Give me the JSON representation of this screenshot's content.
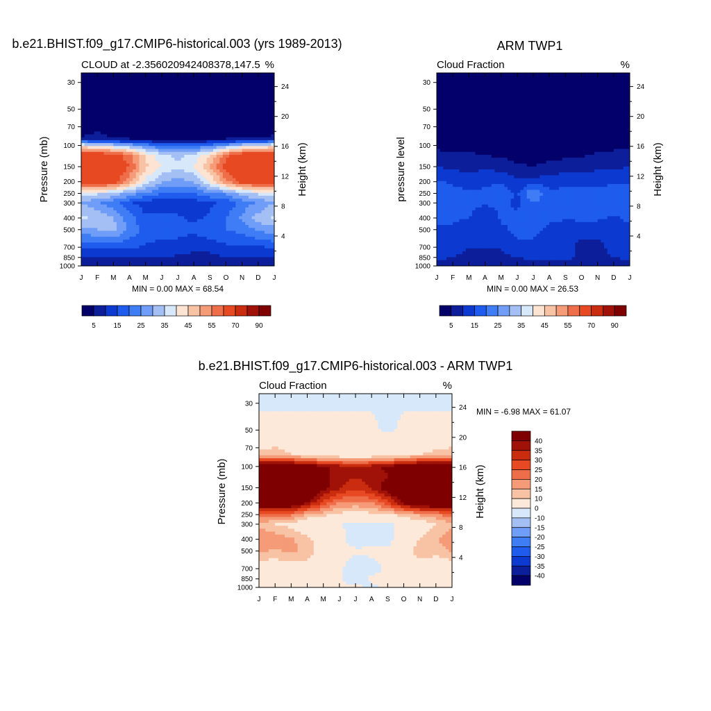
{
  "palettes": {
    "abs": [
      "#03006a",
      "#0d1e9a",
      "#0c3ad0",
      "#1f5cee",
      "#3f7df5",
      "#6f9df7",
      "#a3bff4",
      "#d8e8fb",
      "#fde3d2",
      "#f8c2a4",
      "#f59b78",
      "#ef6e4a",
      "#e74a23",
      "#c92c0e",
      "#a01208",
      "#7e0000"
    ],
    "diff": [
      "#03006a",
      "#0d1e9a",
      "#0c3ad0",
      "#1f5cee",
      "#3f7df5",
      "#6f9df7",
      "#a3bff4",
      "#d8e8fb",
      "#fde9da",
      "#f8c2a4",
      "#f59b78",
      "#ef6e4a",
      "#e74a23",
      "#c92c0e",
      "#a01208",
      "#7e0000"
    ]
  },
  "chart_data": [
    {
      "type": "heatmap",
      "title": "b.e21.BHIST.f09_g17.CMIP6-historical.003 (yrs 1989-2013)",
      "left_subtitle": "CLOUD at -2.356020942408378,147.5",
      "right_subtitle": "%",
      "ylabel": "Pressure (mb)",
      "ylabel_right": "Height (km)",
      "x_ticklabels": [
        "J",
        "F",
        "M",
        "A",
        "M",
        "J",
        "J",
        "A",
        "S",
        "O",
        "N",
        "D",
        "J"
      ],
      "y_ticks": [
        30,
        50,
        70,
        100,
        150,
        200,
        250,
        300,
        400,
        500,
        700,
        850,
        1000
      ],
      "y_ticklabels": [
        "30",
        "50",
        "70",
        "100",
        "150",
        "200",
        "250",
        "300",
        "400",
        "500",
        "700",
        "850",
        "1000"
      ],
      "height_ticks": [
        4,
        8,
        12,
        16,
        20,
        24
      ],
      "height_ticklabels": [
        "4",
        "8",
        "12",
        "16",
        "20",
        "24"
      ],
      "ylim": [
        1000,
        25
      ],
      "y_scale": "log",
      "stats": "MIN =   0.00 MAX =  68.54",
      "levels": [
        5,
        10,
        15,
        20,
        25,
        30,
        35,
        40,
        45,
        50,
        55,
        60,
        70,
        80,
        90
      ],
      "colorbar_labels": [
        "5",
        "15",
        "25",
        "35",
        "45",
        "55",
        "70",
        "90"
      ],
      "colorbar_orientation": "horizontal",
      "palette": "abs",
      "pressure_levels": [
        25,
        50,
        80,
        90,
        100,
        120,
        150,
        200,
        250,
        300,
        400,
        500,
        700,
        850,
        1000
      ],
      "month_values": [
        0,
        1,
        2,
        3,
        4,
        5,
        6,
        7,
        8,
        9,
        10,
        11,
        12
      ],
      "z": [
        [
          0,
          0,
          0,
          0,
          0,
          0,
          0,
          0,
          0,
          0,
          0,
          0,
          0
        ],
        [
          0,
          0,
          0,
          0,
          0,
          0,
          0,
          0,
          0,
          0,
          0,
          0,
          0
        ],
        [
          1,
          6,
          1,
          1,
          1,
          1,
          1,
          1,
          1,
          1,
          1,
          1,
          2
        ],
        [
          12,
          10,
          8,
          6,
          5,
          4,
          4,
          4,
          5,
          6,
          8,
          10,
          12
        ],
        [
          40,
          38,
          34,
          30,
          24,
          20,
          20,
          20,
          22,
          28,
          34,
          38,
          40
        ],
        [
          66,
          66,
          64,
          56,
          44,
          36,
          34,
          36,
          44,
          58,
          66,
          66,
          66
        ],
        [
          66,
          68,
          66,
          60,
          46,
          40,
          36,
          40,
          50,
          62,
          68,
          68,
          66
        ],
        [
          64,
          66,
          64,
          52,
          38,
          30,
          28,
          30,
          40,
          54,
          64,
          66,
          64
        ],
        [
          38,
          36,
          34,
          28,
          24,
          20,
          20,
          20,
          24,
          26,
          32,
          36,
          38
        ],
        [
          30,
          26,
          22,
          16,
          12,
          12,
          12,
          12,
          14,
          16,
          22,
          26,
          30
        ],
        [
          36,
          34,
          30,
          22,
          16,
          16,
          16,
          14,
          16,
          20,
          26,
          32,
          36
        ],
        [
          28,
          30,
          32,
          24,
          18,
          16,
          16,
          16,
          18,
          20,
          22,
          26,
          28
        ],
        [
          16,
          16,
          16,
          16,
          14,
          14,
          14,
          12,
          12,
          14,
          14,
          14,
          16
        ],
        [
          10,
          10,
          10,
          10,
          10,
          10,
          9,
          8,
          8,
          10,
          10,
          10,
          10
        ],
        [
          9,
          9,
          9,
          9,
          9,
          9,
          9,
          9,
          9,
          9,
          9,
          9,
          9
        ]
      ]
    },
    {
      "type": "heatmap",
      "title": "ARM TWP1",
      "left_subtitle": "Cloud Fraction",
      "right_subtitle": "%",
      "ylabel": "pressure level",
      "ylabel_right": "Height (km)",
      "x_ticklabels": [
        "J",
        "F",
        "M",
        "A",
        "M",
        "J",
        "J",
        "A",
        "S",
        "O",
        "N",
        "D",
        "J"
      ],
      "y_ticks": [
        30,
        50,
        70,
        100,
        150,
        200,
        250,
        300,
        400,
        500,
        700,
        850,
        1000
      ],
      "y_ticklabels": [
        "30",
        "50",
        "70",
        "100",
        "150",
        "200",
        "250",
        "300",
        "400",
        "500",
        "700",
        "850",
        "1000"
      ],
      "height_ticks": [
        4,
        8,
        12,
        16,
        20,
        24
      ],
      "height_ticklabels": [
        "4",
        "8",
        "12",
        "16",
        "20",
        "24"
      ],
      "ylim": [
        1000,
        25
      ],
      "y_scale": "log",
      "stats": "MIN =   0.00 MAX =  26.53",
      "levels": [
        5,
        10,
        15,
        20,
        25,
        30,
        35,
        40,
        45,
        50,
        55,
        60,
        70,
        80,
        90
      ],
      "colorbar_labels": [
        "5",
        "15",
        "25",
        "35",
        "45",
        "55",
        "70",
        "90"
      ],
      "colorbar_orientation": "horizontal",
      "palette": "abs",
      "pressure_levels": [
        25,
        50,
        80,
        90,
        100,
        120,
        150,
        200,
        250,
        300,
        400,
        500,
        700,
        850,
        1000
      ],
      "month_values": [
        0,
        1,
        2,
        3,
        4,
        5,
        6,
        7,
        8,
        9,
        10,
        11,
        12
      ],
      "z": [
        [
          0,
          0,
          0,
          0,
          0,
          0,
          0,
          0,
          0,
          0,
          0,
          0,
          0
        ],
        [
          0,
          0,
          0,
          0,
          0,
          0,
          0,
          0,
          0,
          0,
          0,
          0,
          0
        ],
        [
          0,
          0,
          0,
          0,
          0,
          0,
          0,
          0,
          0,
          0,
          0,
          0,
          0
        ],
        [
          1,
          1,
          1,
          1,
          1,
          1,
          1,
          1,
          1,
          1,
          1,
          1,
          1
        ],
        [
          2,
          2,
          2,
          2,
          1,
          1,
          1,
          1,
          1,
          2,
          2,
          3,
          3
        ],
        [
          8,
          7,
          6,
          5,
          4,
          3,
          3,
          4,
          4,
          4,
          6,
          7,
          8
        ],
        [
          10,
          9,
          8,
          9,
          8,
          6,
          5,
          6,
          7,
          8,
          9,
          9,
          10
        ],
        [
          16,
          14,
          12,
          14,
          14,
          11,
          12,
          13,
          14,
          14,
          13,
          13,
          14
        ],
        [
          18,
          17,
          16,
          16,
          19,
          14,
          26,
          16,
          16,
          16,
          18,
          20,
          18
        ],
        [
          19,
          18,
          17,
          16,
          16,
          14,
          20,
          16,
          18,
          19,
          18,
          20,
          19
        ],
        [
          16,
          16,
          15,
          10,
          16,
          16,
          17,
          16,
          15,
          16,
          16,
          14,
          16
        ],
        [
          14,
          14,
          12,
          10,
          14,
          16,
          16,
          14,
          14,
          12,
          12,
          14,
          14
        ],
        [
          12,
          12,
          10,
          10,
          10,
          14,
          14,
          14,
          12,
          8,
          8,
          12,
          12
        ],
        [
          12,
          10,
          9,
          9,
          9,
          10,
          12,
          12,
          12,
          8,
          8,
          10,
          12
        ],
        [
          6,
          6,
          6,
          6,
          6,
          6,
          6,
          6,
          6,
          6,
          6,
          6,
          6
        ]
      ]
    },
    {
      "type": "heatmap",
      "title": "b.e21.BHIST.f09_g17.CMIP6-historical.003 - ARM TWP1",
      "left_subtitle": "Cloud Fraction",
      "right_subtitle": "%",
      "ylabel": "Pressure (mb)",
      "ylabel_right": "Height (km)",
      "x_ticklabels": [
        "J",
        "F",
        "M",
        "A",
        "M",
        "J",
        "J",
        "A",
        "S",
        "O",
        "N",
        "D",
        "J"
      ],
      "y_ticks": [
        30,
        50,
        70,
        100,
        150,
        200,
        250,
        300,
        400,
        500,
        700,
        850,
        1000
      ],
      "y_ticklabels": [
        "30",
        "50",
        "70",
        "100",
        "150",
        "200",
        "250",
        "300",
        "400",
        "500",
        "700",
        "850",
        "1000"
      ],
      "height_ticks": [
        4,
        8,
        12,
        16,
        20,
        24
      ],
      "height_ticklabels": [
        "4",
        "8",
        "12",
        "16",
        "20",
        "24"
      ],
      "ylim": [
        1000,
        25
      ],
      "y_scale": "log",
      "stats": "MIN =  -6.98 MAX =  61.07",
      "levels": [
        -40,
        -35,
        -30,
        -25,
        -20,
        -15,
        -10,
        0,
        10,
        15,
        20,
        25,
        30,
        35,
        40
      ],
      "colorbar_labels": [
        "40",
        "35",
        "30",
        "25",
        "20",
        "15",
        "10",
        "0",
        "-10",
        "-15",
        "-20",
        "-25",
        "-30",
        "-35",
        "-40"
      ],
      "colorbar_orientation": "vertical",
      "palette": "diff",
      "pressure_levels": [
        25,
        50,
        80,
        90,
        100,
        120,
        150,
        200,
        250,
        300,
        400,
        500,
        700,
        850,
        1000
      ],
      "month_values": [
        0,
        1,
        2,
        3,
        4,
        5,
        6,
        7,
        8,
        9,
        10,
        11,
        12
      ],
      "z": [
        [
          -1,
          -1,
          -1,
          -1,
          -1,
          -1,
          -1,
          -1,
          -1,
          -1,
          -1,
          -1,
          -1
        ],
        [
          1,
          1,
          1,
          1,
          1,
          1,
          1,
          1,
          -1,
          1,
          1,
          1,
          1
        ],
        [
          12,
          14,
          10,
          8,
          6,
          5,
          5,
          5,
          6,
          8,
          10,
          12,
          14
        ],
        [
          30,
          32,
          30,
          26,
          22,
          20,
          18,
          20,
          22,
          26,
          30,
          32,
          30
        ],
        [
          48,
          50,
          50,
          46,
          42,
          38,
          36,
          38,
          42,
          46,
          48,
          50,
          48
        ],
        [
          58,
          60,
          60,
          52,
          42,
          36,
          36,
          36,
          40,
          54,
          60,
          60,
          58
        ],
        [
          56,
          60,
          58,
          50,
          42,
          36,
          32,
          36,
          44,
          56,
          60,
          60,
          56
        ],
        [
          48,
          52,
          50,
          40,
          28,
          20,
          18,
          20,
          28,
          42,
          50,
          52,
          48
        ],
        [
          24,
          22,
          22,
          14,
          12,
          8,
          8,
          8,
          10,
          12,
          16,
          18,
          24
        ],
        [
          14,
          10,
          8,
          4,
          2,
          1,
          -3,
          -3,
          -2,
          2,
          6,
          10,
          14
        ],
        [
          20,
          18,
          16,
          12,
          4,
          2,
          -3,
          -2,
          -3,
          4,
          10,
          14,
          20
        ],
        [
          16,
          14,
          16,
          14,
          6,
          1,
          1,
          1,
          2,
          6,
          14,
          12,
          16
        ],
        [
          5,
          5,
          6,
          6,
          4,
          1,
          -3,
          -2,
          1,
          6,
          6,
          4,
          5
        ],
        [
          1,
          1,
          1,
          1,
          1,
          1,
          -3,
          1,
          1,
          1,
          1,
          1,
          1
        ],
        [
          1,
          1,
          1,
          1,
          1,
          1,
          1,
          -1,
          1,
          1,
          1,
          1,
          1
        ]
      ]
    }
  ]
}
